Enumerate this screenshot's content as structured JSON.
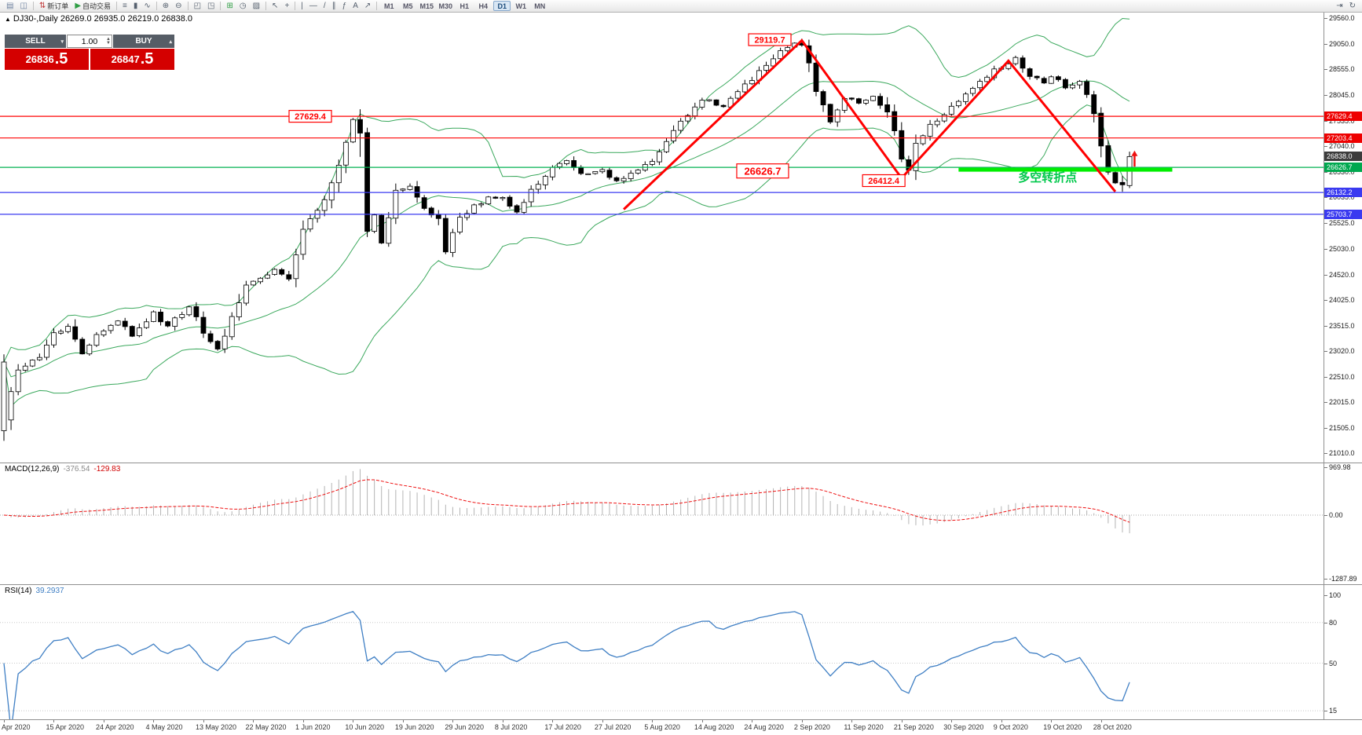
{
  "toolbar": {
    "buttons": [
      {
        "name": "new-chart-icon",
        "glyph": "▤",
        "color": "#6b7f9e"
      },
      {
        "name": "chart-profiles-icon",
        "glyph": "◫",
        "color": "#6b7f9e"
      },
      {
        "sep": true
      },
      {
        "name": "new-order-button",
        "glyph": "⇅",
        "color": "#c03a3a",
        "label": "新订单"
      },
      {
        "name": "autotrading-button",
        "glyph": "▶",
        "color": "#2f9e44",
        "label": "自动交易"
      },
      {
        "sep": true
      },
      {
        "name": "bars-chart-icon",
        "glyph": "≡",
        "color": "#55606e"
      },
      {
        "name": "candlestick-chart-icon",
        "glyph": "▮",
        "color": "#55606e"
      },
      {
        "name": "line-chart-icon",
        "glyph": "∿",
        "color": "#55606e"
      },
      {
        "sep": true
      },
      {
        "name": "zoom-in-icon",
        "glyph": "⊕",
        "color": "#55606e"
      },
      {
        "name": "zoom-out-icon",
        "glyph": "⊖",
        "color": "#55606e"
      },
      {
        "sep": true
      },
      {
        "name": "tile-windows-icon",
        "glyph": "◰",
        "color": "#55606e"
      },
      {
        "name": "cascade-windows-icon",
        "glyph": "◳",
        "color": "#55606e"
      },
      {
        "sep": true
      },
      {
        "name": "add-indicator-icon",
        "glyph": "⊞",
        "color": "#2f9e44"
      },
      {
        "name": "period-clock-icon",
        "glyph": "◷",
        "color": "#55606e"
      },
      {
        "name": "template-icon",
        "glyph": "▨",
        "color": "#55606e"
      },
      {
        "sep": true
      },
      {
        "name": "cursor-icon",
        "glyph": "↖",
        "color": "#55606e"
      },
      {
        "name": "crosshair-icon",
        "glyph": "+",
        "color": "#55606e"
      },
      {
        "sep": true
      },
      {
        "name": "vertical-line-icon",
        "glyph": "|",
        "color": "#55606e"
      },
      {
        "name": "horizontal-line-icon",
        "glyph": "—",
        "color": "#55606e"
      },
      {
        "name": "trendline-icon",
        "glyph": "/",
        "color": "#55606e"
      },
      {
        "name": "channel-icon",
        "glyph": "∥",
        "color": "#55606e"
      },
      {
        "name": "fibonacci-icon",
        "glyph": "ƒ",
        "color": "#55606e"
      },
      {
        "name": "text-label-icon",
        "glyph": "A",
        "color": "#55606e"
      },
      {
        "name": "arrow-object-icon",
        "glyph": "↗",
        "color": "#55606e"
      },
      {
        "sep": true
      }
    ],
    "timeframes": [
      "M1",
      "M5",
      "M15",
      "M30",
      "H1",
      "H4",
      "D1",
      "W1",
      "MN"
    ],
    "active_timeframe": "D1",
    "right_buttons": [
      {
        "name": "chart-shift-icon",
        "glyph": "⇥"
      },
      {
        "name": "auto-scroll-icon",
        "glyph": "↻"
      }
    ]
  },
  "chart_title": "DJ30-,Daily 26269.0 26935.0 26219.0 26838.0",
  "trade_panel": {
    "sell_label": "SELL",
    "buy_label": "BUY",
    "volume": "1.00",
    "sell_price_main": "26836",
    "sell_price_frac": ".5",
    "buy_price_main": "26847",
    "buy_price_frac": ".5"
  },
  "chart_data": {
    "type": "candlestick",
    "symbol": "DJ30-",
    "timeframe": "Daily",
    "ohlc": {
      "open": 26269.0,
      "high": 26935.0,
      "low": 26219.0,
      "close": 26838.0
    },
    "y_ticks": [
      29560,
      29050,
      28555,
      28045,
      27535,
      27040,
      26530,
      26035,
      25525,
      25030,
      24520,
      24025,
      23515,
      23020,
      22510,
      22015,
      21505,
      21010
    ],
    "x_ticks": [
      [
        0,
        "6 Apr 2020"
      ],
      [
        7,
        "15 Apr 2020"
      ],
      [
        14,
        "24 Apr 2020"
      ],
      [
        21,
        "4 May 2020"
      ],
      [
        28,
        "13 May 2020"
      ],
      [
        35,
        "22 May 2020"
      ],
      [
        42,
        "1 Jun 2020"
      ],
      [
        49,
        "10 Jun 2020"
      ],
      [
        56,
        "19 Jun 2020"
      ],
      [
        63,
        "29 Jun 2020"
      ],
      [
        70,
        "8 Jul 2020"
      ],
      [
        77,
        "17 Jul 2020"
      ],
      [
        84,
        "27 Jul 2020"
      ],
      [
        91,
        "5 Aug 2020"
      ],
      [
        98,
        "14 Aug 2020"
      ],
      [
        105,
        "24 Aug 2020"
      ],
      [
        112,
        "2 Sep 2020"
      ],
      [
        119,
        "11 Sep 2020"
      ],
      [
        126,
        "21 Sep 2020"
      ],
      [
        133,
        "30 Sep 2020"
      ],
      [
        140,
        "9 Oct 2020"
      ],
      [
        147,
        "19 Oct 2020"
      ],
      [
        154,
        "28 Oct 2020"
      ]
    ],
    "candle_count": 159,
    "price_anchors": [
      [
        0,
        21700
      ],
      [
        2,
        22650
      ],
      [
        5,
        22900
      ],
      [
        7,
        23350
      ],
      [
        9,
        23500
      ],
      [
        11,
        22950
      ],
      [
        13,
        23350
      ],
      [
        16,
        23600
      ],
      [
        18,
        23350
      ],
      [
        21,
        23750
      ],
      [
        23,
        23500
      ],
      [
        26,
        23900
      ],
      [
        28,
        23400
      ],
      [
        30,
        23050
      ],
      [
        32,
        23650
      ],
      [
        34,
        24350
      ],
      [
        36,
        24450
      ],
      [
        38,
        24600
      ],
      [
        40,
        24400
      ],
      [
        42,
        25450
      ],
      [
        44,
        25750
      ],
      [
        46,
        26300
      ],
      [
        48,
        27100
      ],
      [
        49,
        27550
      ],
      [
        50,
        27300
      ],
      [
        51,
        25350
      ],
      [
        52,
        25700
      ],
      [
        53,
        25150
      ],
      [
        55,
        26150
      ],
      [
        57,
        26300
      ],
      [
        59,
        25850
      ],
      [
        61,
        25600
      ],
      [
        62,
        24950
      ],
      [
        64,
        25650
      ],
      [
        66,
        25850
      ],
      [
        68,
        26050
      ],
      [
        70,
        26050
      ],
      [
        72,
        25750
      ],
      [
        74,
        26150
      ],
      [
        77,
        26650
      ],
      [
        79,
        26750
      ],
      [
        81,
        26500
      ],
      [
        84,
        26550
      ],
      [
        86,
        26350
      ],
      [
        88,
        26500
      ],
      [
        91,
        26750
      ],
      [
        94,
        27350
      ],
      [
        98,
        27950
      ],
      [
        101,
        27850
      ],
      [
        105,
        28350
      ],
      [
        108,
        28750
      ],
      [
        110,
        29000
      ],
      [
        112,
        29050
      ],
      [
        113,
        28700
      ],
      [
        114,
        28150
      ],
      [
        116,
        27550
      ],
      [
        118,
        28000
      ],
      [
        120,
        27900
      ],
      [
        122,
        28000
      ],
      [
        124,
        27750
      ],
      [
        125,
        27300
      ],
      [
        126,
        26750
      ],
      [
        127,
        26600
      ],
      [
        128,
        27100
      ],
      [
        130,
        27450
      ],
      [
        133,
        27800
      ],
      [
        135,
        28050
      ],
      [
        137,
        28350
      ],
      [
        140,
        28600
      ],
      [
        142,
        28750
      ],
      [
        144,
        28450
      ],
      [
        146,
        28300
      ],
      [
        147,
        28450
      ],
      [
        149,
        28200
      ],
      [
        151,
        28350
      ],
      [
        153,
        27700
      ],
      [
        154,
        27050
      ],
      [
        155,
        26550
      ],
      [
        156,
        26350
      ],
      [
        157,
        26280
      ],
      [
        158,
        26838
      ]
    ],
    "bollinger": {
      "period": 20,
      "deviation": 2,
      "color": "#3aa85c"
    },
    "zigzag": {
      "color": "#ff0000",
      "width": 3,
      "points": [
        [
          87,
          25800
        ],
        [
          112,
          29119.7
        ],
        [
          126,
          26412.4
        ],
        [
          141,
          28720
        ],
        [
          156,
          26150
        ]
      ]
    },
    "hlines": [
      {
        "price": 27629.4,
        "color": "#ff0000"
      },
      {
        "price": 27203.4,
        "color": "#ff0000"
      },
      {
        "price": 26626.7,
        "color": "#00b050"
      },
      {
        "price": 26132.2,
        "color": "#3a3af0"
      },
      {
        "price": 25703.7,
        "color": "#3a3af0"
      }
    ],
    "thick_line": {
      "price": 26580,
      "from": 134,
      "to": 164,
      "color": "#00ee00",
      "width": 5
    },
    "price_tags": [
      {
        "text": "27629.4",
        "price": 27629.4,
        "color": "#ee0000"
      },
      {
        "text": "27203.4",
        "price": 27203.4,
        "color": "#ee0000"
      },
      {
        "text": "26838.0",
        "price": 26838.0,
        "color": "#3c3c3c"
      },
      {
        "text": "26626.7",
        "price": 26626.7,
        "color": "#00a84f"
      },
      {
        "text": "26132.2",
        "price": 26132.2,
        "color": "#3a3af0"
      },
      {
        "text": "25703.7",
        "price": 25703.7,
        "color": "#3a3af0"
      }
    ],
    "annotations": [
      {
        "text": "29119.7",
        "i": 107.5,
        "price": 29135,
        "style": "box"
      },
      {
        "text": "27629.4",
        "i": 43,
        "price": 27629.4,
        "style": "box"
      },
      {
        "text": "26626.7",
        "i": 106.5,
        "price": 26555,
        "style": "box-big"
      },
      {
        "text": "26412.4",
        "i": 123.5,
        "price": 26365,
        "style": "box"
      },
      {
        "text": "多空转折点",
        "i": 146.5,
        "price": 26430,
        "style": "green-text",
        "color": "#00c84b"
      }
    ],
    "arrow": {
      "i": 158.7,
      "from_price": 26640,
      "to_price": 26940,
      "color": "#ee1111"
    },
    "macd": {
      "name": "MACD(12,26,9)",
      "value1": "-376.54",
      "value2": "-129.83",
      "fast": 12,
      "slow": 26,
      "signal": 9,
      "axis": [
        {
          "text": "969.98",
          "value": 969.98
        },
        {
          "text": "0.00",
          "value": 0
        },
        {
          "text": "-1287.89",
          "value": -1287.89
        }
      ],
      "histogram_color": "#b4b4b4",
      "signal_color": "#ee1111"
    },
    "rsi": {
      "name": "RSI(14)",
      "value": "39.2937",
      "period": 14,
      "color": "#3f7fc4",
      "axis": [
        {
          "text": "100",
          "value": 100
        },
        {
          "text": "80",
          "value": 80
        },
        {
          "text": "50",
          "value": 50
        },
        {
          "text": "15",
          "value": 15
        }
      ]
    }
  }
}
